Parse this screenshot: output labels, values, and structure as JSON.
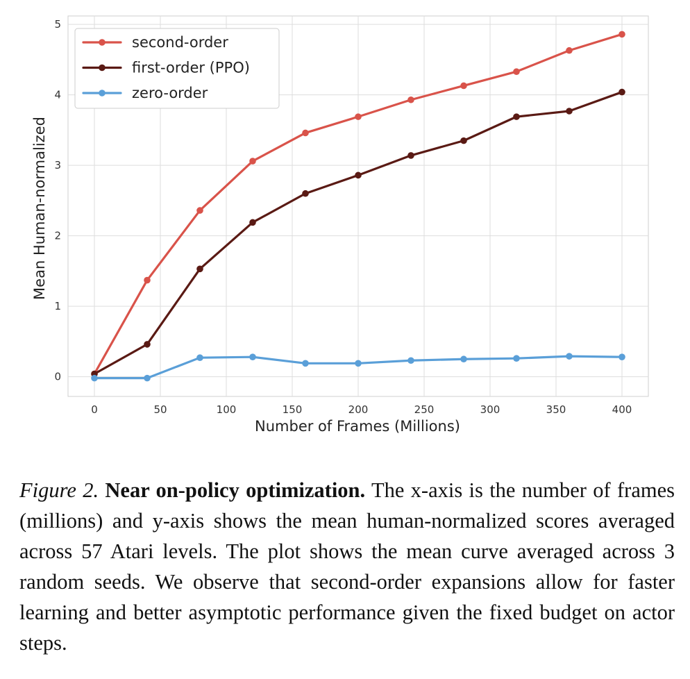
{
  "chart_data": {
    "type": "line",
    "title": "",
    "xlabel": "Number of Frames (Millions)",
    "ylabel": "Mean Human-normalized",
    "x": [
      0,
      40,
      80,
      120,
      160,
      200,
      240,
      280,
      320,
      360,
      400
    ],
    "xlim": [
      -20,
      420
    ],
    "ylim": [
      -0.28,
      5.12
    ],
    "xticks": [
      0,
      50,
      100,
      150,
      200,
      250,
      300,
      350,
      400
    ],
    "yticks": [
      0,
      1,
      2,
      3,
      4,
      5
    ],
    "grid": true,
    "legend_position": "top-left",
    "series": [
      {
        "name": "second-order",
        "color": "#d9534a",
        "values": [
          0.04,
          1.37,
          2.36,
          3.06,
          3.46,
          3.69,
          3.93,
          4.13,
          4.33,
          4.63,
          4.86
        ]
      },
      {
        "name": "first-order (PPO)",
        "color": "#5a1a14",
        "values": [
          0.04,
          0.46,
          1.53,
          2.19,
          2.6,
          2.86,
          3.14,
          3.35,
          3.69,
          3.77,
          4.04
        ]
      },
      {
        "name": "zero-order",
        "color": "#5a9fd8",
        "values": [
          -0.02,
          -0.02,
          0.27,
          0.28,
          0.19,
          0.19,
          0.23,
          0.25,
          0.26,
          0.29,
          0.28
        ]
      }
    ]
  },
  "caption": {
    "label": "Figure 2.",
    "title": "Near on-policy optimization.",
    "text": "The x-axis is the number of frames (millions) and y-axis shows the mean human-normalized scores averaged across 57 Atari levels. The plot shows the mean curve averaged across 3 random seeds. We observe that second-order expansions allow for faster learning and better asymptotic performance given the fixed budget on actor steps."
  }
}
